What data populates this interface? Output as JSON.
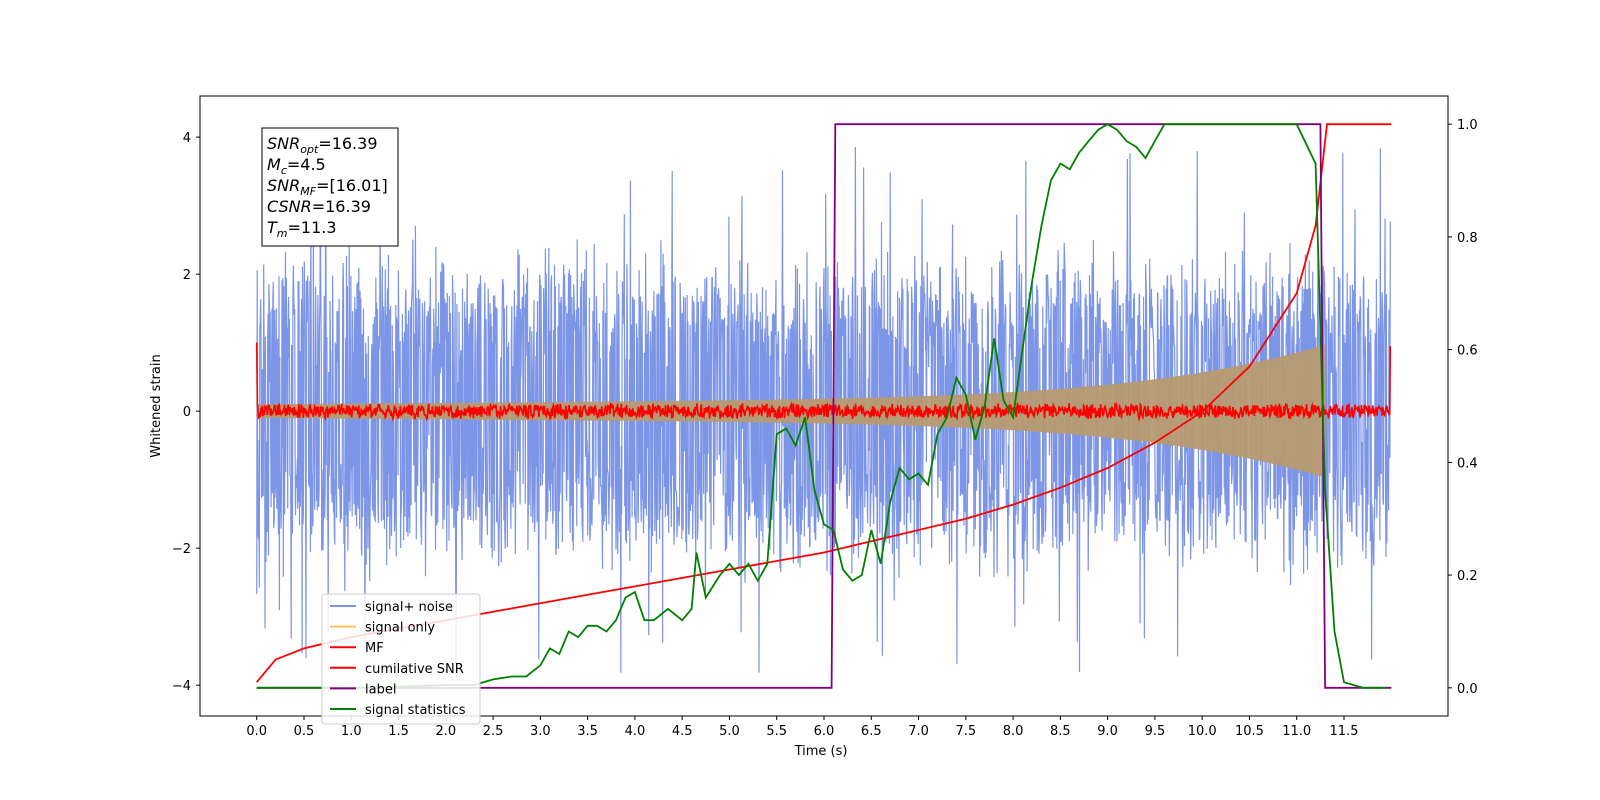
{
  "chart_data": {
    "type": "line",
    "xlabel": "Time (s)",
    "ylabel": "Whitened strain",
    "xlim": [
      -0.6,
      12.6
    ],
    "ylim": [
      -4.45,
      4.6
    ],
    "y2lim": [
      -0.05,
      1.05
    ],
    "x_ticks": [
      "0.0",
      "0.5",
      "1.0",
      "1.5",
      "2.0",
      "2.5",
      "3.0",
      "3.5",
      "4.0",
      "4.5",
      "5.0",
      "5.5",
      "6.0",
      "6.5",
      "7.0",
      "7.5",
      "8.0",
      "8.5",
      "9.0",
      "9.5",
      "10.0",
      "10.5",
      "11.0",
      "11.5"
    ],
    "y_ticks": [
      {
        "value": 4,
        "label": "4"
      },
      {
        "value": 2,
        "label": "2"
      },
      {
        "value": 0,
        "label": "0"
      },
      {
        "value": -2,
        "label": "−2"
      },
      {
        "value": -4,
        "label": "−4"
      }
    ],
    "y2_ticks": [
      {
        "value": 1.0,
        "label": "1.0"
      },
      {
        "value": 0.8,
        "label": "0.8"
      },
      {
        "value": 0.6,
        "label": "0.6"
      },
      {
        "value": 0.4,
        "label": "0.4"
      },
      {
        "value": 0.2,
        "label": "0.2"
      },
      {
        "value": 0.0,
        "label": "0.0"
      }
    ],
    "legend_position": "lower-left",
    "info_box": {
      "position": "upper-left",
      "lines": [
        {
          "sym": "SNR",
          "sub": "opt",
          "val": "=16.39"
        },
        {
          "sym": "M",
          "sub": "c",
          "val": "=4.5"
        },
        {
          "sym": "SNR",
          "sub": "MF",
          "val": "=[16.01]"
        },
        {
          "sym": "CSNR",
          "sub": "",
          "val": "=16.39"
        },
        {
          "sym": "T",
          "sub": "m",
          "val": "=11.3"
        }
      ]
    },
    "series": [
      {
        "name": "signal+ noise",
        "axis": "left",
        "color": "#5b7be0",
        "kind": "noise",
        "x_range": [
          0.0,
          11.99
        ],
        "envelope_upper": 2.4,
        "envelope_lower": -2.4,
        "peak_max": 4.1,
        "peak_min": -4.0
      },
      {
        "name": "signal only",
        "axis": "left",
        "color": "#ffc060",
        "kind": "chirp",
        "x_range": [
          0.0,
          11.3
        ],
        "amplitude_start": 0.1,
        "amplitude_end": 0.85
      },
      {
        "name": "MF",
        "axis": "left",
        "color": "#ff0000",
        "kind": "noise",
        "x_range": [
          0.0,
          11.99
        ],
        "envelope_upper": 0.12,
        "envelope_lower": -0.12,
        "start_value": 1.0,
        "end_value": 0.95
      },
      {
        "name": "cumilative SNR",
        "axis": "right",
        "color": "#ff0000",
        "kind": "line",
        "points": [
          [
            0.0,
            0.01
          ],
          [
            0.2,
            0.05
          ],
          [
            0.5,
            0.07
          ],
          [
            1.0,
            0.09
          ],
          [
            1.5,
            0.105
          ],
          [
            2.0,
            0.12
          ],
          [
            2.5,
            0.135
          ],
          [
            3.0,
            0.15
          ],
          [
            3.5,
            0.165
          ],
          [
            4.0,
            0.18
          ],
          [
            4.5,
            0.195
          ],
          [
            5.0,
            0.21
          ],
          [
            5.5,
            0.225
          ],
          [
            6.0,
            0.24
          ],
          [
            6.5,
            0.26
          ],
          [
            7.0,
            0.28
          ],
          [
            7.5,
            0.3
          ],
          [
            8.0,
            0.325
          ],
          [
            8.5,
            0.355
          ],
          [
            9.0,
            0.39
          ],
          [
            9.5,
            0.435
          ],
          [
            10.0,
            0.49
          ],
          [
            10.5,
            0.57
          ],
          [
            11.0,
            0.7
          ],
          [
            11.2,
            0.82
          ],
          [
            11.32,
            1.0
          ],
          [
            12.0,
            1.0
          ]
        ]
      },
      {
        "name": "label",
        "axis": "right",
        "color": "#800080",
        "kind": "line",
        "points": [
          [
            0.0,
            0.0
          ],
          [
            6.08,
            0.0
          ],
          [
            6.12,
            1.0
          ],
          [
            11.25,
            1.0
          ],
          [
            11.3,
            0.0
          ],
          [
            12.0,
            0.0
          ]
        ]
      },
      {
        "name": "signal statistics",
        "axis": "right",
        "color": "#008000",
        "kind": "line",
        "points": [
          [
            0.0,
            0.0
          ],
          [
            0.5,
            0.0
          ],
          [
            1.0,
            0.0
          ],
          [
            1.5,
            0.002
          ],
          [
            2.0,
            0.005
          ],
          [
            2.3,
            0.005
          ],
          [
            2.5,
            0.015
          ],
          [
            2.7,
            0.02
          ],
          [
            2.85,
            0.02
          ],
          [
            3.0,
            0.04
          ],
          [
            3.1,
            0.07
          ],
          [
            3.2,
            0.06
          ],
          [
            3.3,
            0.1
          ],
          [
            3.4,
            0.09
          ],
          [
            3.5,
            0.11
          ],
          [
            3.6,
            0.11
          ],
          [
            3.7,
            0.1
          ],
          [
            3.8,
            0.12
          ],
          [
            3.9,
            0.16
          ],
          [
            4.0,
            0.17
          ],
          [
            4.1,
            0.12
          ],
          [
            4.2,
            0.12
          ],
          [
            4.35,
            0.14
          ],
          [
            4.5,
            0.12
          ],
          [
            4.6,
            0.14
          ],
          [
            4.65,
            0.24
          ],
          [
            4.75,
            0.16
          ],
          [
            4.9,
            0.2
          ],
          [
            5.0,
            0.22
          ],
          [
            5.1,
            0.2
          ],
          [
            5.2,
            0.22
          ],
          [
            5.3,
            0.19
          ],
          [
            5.4,
            0.22
          ],
          [
            5.5,
            0.45
          ],
          [
            5.6,
            0.46
          ],
          [
            5.7,
            0.43
          ],
          [
            5.8,
            0.48
          ],
          [
            5.9,
            0.35
          ],
          [
            6.0,
            0.29
          ],
          [
            6.1,
            0.28
          ],
          [
            6.2,
            0.21
          ],
          [
            6.3,
            0.19
          ],
          [
            6.4,
            0.2
          ],
          [
            6.5,
            0.28
          ],
          [
            6.6,
            0.22
          ],
          [
            6.7,
            0.33
          ],
          [
            6.8,
            0.39
          ],
          [
            6.9,
            0.37
          ],
          [
            7.0,
            0.38
          ],
          [
            7.1,
            0.36
          ],
          [
            7.2,
            0.45
          ],
          [
            7.3,
            0.48
          ],
          [
            7.4,
            0.55
          ],
          [
            7.5,
            0.52
          ],
          [
            7.6,
            0.44
          ],
          [
            7.7,
            0.5
          ],
          [
            7.8,
            0.62
          ],
          [
            7.9,
            0.51
          ],
          [
            8.0,
            0.48
          ],
          [
            8.1,
            0.6
          ],
          [
            8.2,
            0.72
          ],
          [
            8.3,
            0.82
          ],
          [
            8.4,
            0.9
          ],
          [
            8.5,
            0.93
          ],
          [
            8.6,
            0.92
          ],
          [
            8.7,
            0.95
          ],
          [
            8.8,
            0.97
          ],
          [
            8.9,
            0.99
          ],
          [
            9.0,
            1.0
          ],
          [
            9.1,
            0.99
          ],
          [
            9.2,
            0.97
          ],
          [
            9.3,
            0.96
          ],
          [
            9.4,
            0.94
          ],
          [
            9.5,
            0.97
          ],
          [
            9.6,
            1.0
          ],
          [
            9.8,
            1.0
          ],
          [
            10.5,
            1.0
          ],
          [
            11.0,
            1.0
          ],
          [
            11.2,
            0.93
          ],
          [
            11.3,
            0.35
          ],
          [
            11.4,
            0.1
          ],
          [
            11.5,
            0.01
          ],
          [
            11.7,
            0.0
          ],
          [
            11.95,
            0.0
          ]
        ]
      }
    ]
  }
}
